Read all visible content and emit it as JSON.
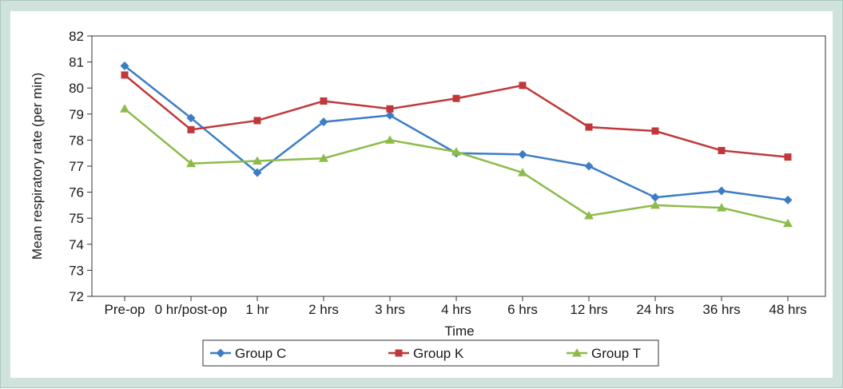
{
  "chart_data": {
    "type": "line",
    "categories": [
      "Pre-op",
      "0 hr/post-op",
      "1 hr",
      "2 hrs",
      "3 hrs",
      "4 hrs",
      "6 hrs",
      "12 hrs",
      "24 hrs",
      "36 hrs",
      "48 hrs"
    ],
    "xlabel": "Time",
    "ylabel": "Mean respiratory rate (per min)",
    "ylim": [
      72,
      82
    ],
    "yticks": [
      72,
      73,
      74,
      75,
      76,
      77,
      78,
      79,
      80,
      81,
      82
    ],
    "grid": false,
    "legend_position": "bottom",
    "series": [
      {
        "name": "Group C",
        "color": "#3b7dc4",
        "marker": "diamond",
        "values": [
          80.85,
          78.85,
          76.75,
          78.7,
          78.95,
          77.5,
          77.45,
          77.0,
          75.8,
          76.05,
          75.7
        ]
      },
      {
        "name": "Group K",
        "color": "#c0383a",
        "marker": "square",
        "values": [
          80.5,
          78.4,
          78.75,
          79.5,
          79.2,
          79.6,
          80.1,
          78.5,
          78.35,
          77.6,
          77.35
        ]
      },
      {
        "name": "Group T",
        "color": "#8dbb4a",
        "marker": "triangle",
        "values": [
          79.2,
          77.1,
          77.2,
          77.3,
          78.0,
          77.55,
          76.75,
          75.1,
          75.5,
          75.4,
          74.8
        ]
      }
    ]
  }
}
